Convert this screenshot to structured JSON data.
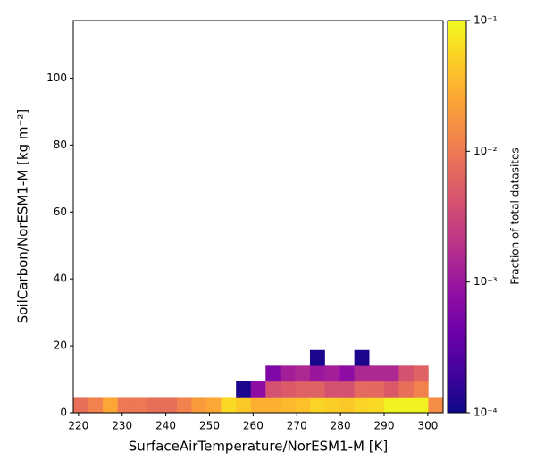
{
  "chart_data": {
    "type": "heatmap",
    "xlabel": "SurfaceAirTemperature/NorESM1-M [K]",
    "ylabel": "SoilCarbon/NorESM1-M [kg m⁻²]",
    "colorbar_label": "Fraction of total datasites",
    "colormap": "plasma",
    "color_scale": "log",
    "x_bins": [
      218.8,
      222.19,
      225.58,
      228.96,
      232.35,
      235.74,
      239.13,
      242.52,
      245.9,
      249.29,
      252.68,
      256.07,
      259.46,
      262.84,
      266.23,
      269.62,
      273.01,
      276.4,
      279.78,
      283.17,
      286.56,
      289.95,
      293.34,
      296.72,
      300.11,
      303.5
    ],
    "y_bins": [
      0,
      4.69,
      9.38,
      14.06,
      18.75
    ],
    "values": [
      [
        0.008,
        0.012,
        0.025,
        0.01,
        0.01,
        0.008,
        0.008,
        0.012,
        0.02,
        0.025,
        0.06,
        0.045,
        0.03,
        0.03,
        0.035,
        0.04,
        0.055,
        0.05,
        0.045,
        0.055,
        0.06,
        0.09,
        0.09,
        0.09,
        0.015
      ],
      [
        null,
        null,
        null,
        null,
        null,
        null,
        null,
        null,
        null,
        null,
        null,
        0.00012,
        0.0008,
        0.004,
        0.005,
        0.006,
        0.006,
        0.004,
        0.004,
        0.007,
        0.007,
        0.005,
        0.008,
        0.012,
        null
      ],
      [
        null,
        null,
        null,
        null,
        null,
        null,
        null,
        null,
        null,
        null,
        null,
        null,
        null,
        0.0006,
        0.0012,
        0.0015,
        0.001,
        0.0012,
        0.0008,
        0.0015,
        0.0015,
        0.0015,
        0.004,
        0.006,
        null
      ],
      [
        null,
        null,
        null,
        null,
        null,
        null,
        null,
        null,
        null,
        null,
        null,
        null,
        null,
        null,
        null,
        null,
        0.00012,
        null,
        null,
        0.00012,
        null,
        null,
        null,
        null,
        null
      ]
    ],
    "xlim": [
      218.8,
      303.5
    ],
    "ylim": [
      0,
      117.2
    ],
    "xticks": [
      220,
      230,
      240,
      250,
      260,
      270,
      280,
      290,
      300
    ],
    "yticks": [
      0,
      20,
      40,
      60,
      80,
      100
    ],
    "clim": [
      0.0001,
      0.1
    ],
    "cticks": [
      {
        "value": 0.0001,
        "label": "10⁻⁴"
      },
      {
        "value": 0.001,
        "label": "10⁻³"
      },
      {
        "value": 0.01,
        "label": "10⁻²"
      },
      {
        "value": 0.1,
        "label": "10⁻¹"
      }
    ]
  }
}
